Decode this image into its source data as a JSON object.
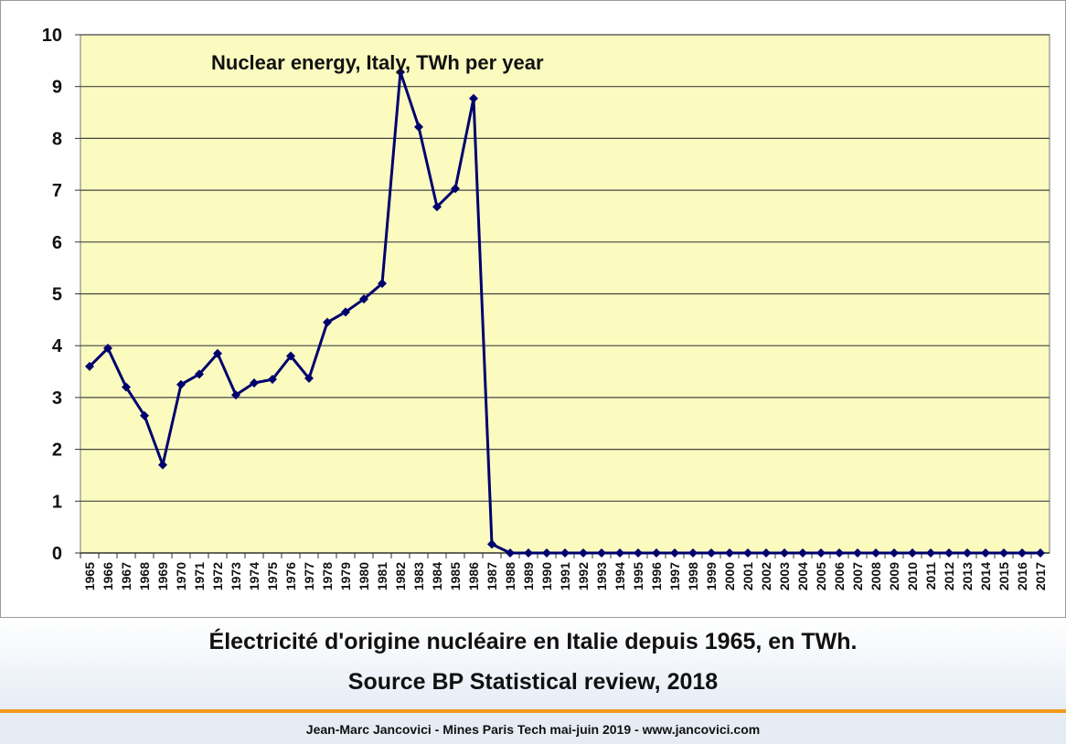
{
  "chart_data": {
    "type": "line",
    "title": "Nuclear energy, Italy, TWh per year",
    "xlabel": "",
    "ylabel": "",
    "ylim": [
      0,
      10
    ],
    "y_ticks": [
      "0",
      "1",
      "2",
      "3",
      "4",
      "5",
      "6",
      "7",
      "8",
      "9",
      "10"
    ],
    "grid": true,
    "legend": "none",
    "colors": {
      "line": "#00006e",
      "plot_bg": "#fbfbc0",
      "grid": "#444444"
    },
    "categories": [
      "1965",
      "1966",
      "1967",
      "1968",
      "1969",
      "1970",
      "1971",
      "1972",
      "1973",
      "1974",
      "1975",
      "1976",
      "1977",
      "1978",
      "1979",
      "1980",
      "1981",
      "1982",
      "1983",
      "1984",
      "1985",
      "1986",
      "1987",
      "1988",
      "1989",
      "1990",
      "1991",
      "1992",
      "1993",
      "1994",
      "1995",
      "1996",
      "1997",
      "1998",
      "1999",
      "2000",
      "2001",
      "2002",
      "2003",
      "2004",
      "2005",
      "2006",
      "2007",
      "2008",
      "2009",
      "2010",
      "2011",
      "2012",
      "2013",
      "2014",
      "2015",
      "2016",
      "2017"
    ],
    "series": [
      {
        "name": "",
        "values": [
          3.6,
          3.95,
          3.2,
          2.65,
          1.7,
          3.25,
          3.45,
          3.85,
          3.05,
          3.28,
          3.35,
          3.8,
          3.37,
          4.45,
          4.65,
          4.9,
          5.2,
          9.28,
          8.22,
          6.68,
          7.03,
          8.77,
          0.17,
          0,
          0,
          0,
          0,
          0,
          0,
          0,
          0,
          0,
          0,
          0,
          0,
          0,
          0,
          0,
          0,
          0,
          0,
          0,
          0,
          0,
          0,
          0,
          0,
          0,
          0,
          0,
          0,
          0,
          0
        ]
      }
    ]
  },
  "caption": {
    "line1": "Électricité d'origine nucléaire en Italie depuis 1965, en TWh.",
    "line2": "Source BP Statistical review, 2018"
  },
  "footer": {
    "text": "Jean-Marc Jancovici - Mines Paris Tech mai-juin 2019 - www.jancovici.com"
  }
}
